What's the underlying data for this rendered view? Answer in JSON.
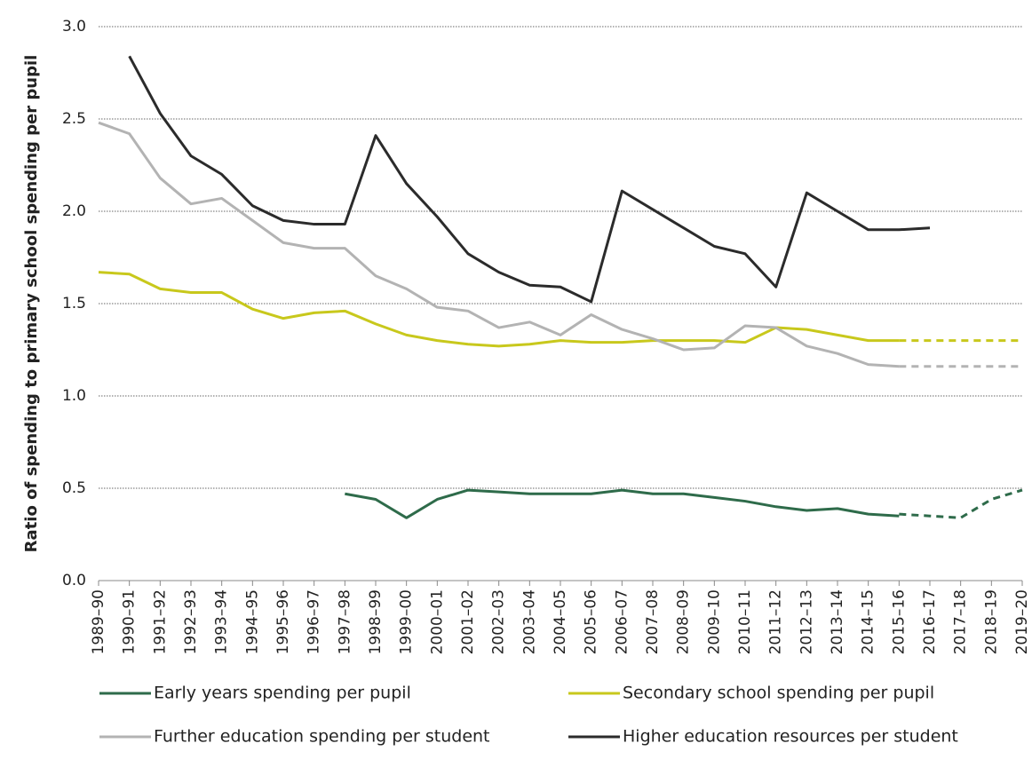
{
  "chart_data": {
    "type": "line",
    "y_label": "Ratio of spending to primary school spending per pupil",
    "categories": [
      "1989–90",
      "1990–91",
      "1991–92",
      "1992–93",
      "1993–94",
      "1994–95",
      "1995–96",
      "1996–97",
      "1997–98",
      "1998–99",
      "1999–00",
      "2000–01",
      "2001–02",
      "2002–03",
      "2003–04",
      "2004–05",
      "2005–06",
      "2006–07",
      "2007–08",
      "2008–09",
      "2009–10",
      "2010–11",
      "2011–12",
      "2012–13",
      "2013–14",
      "2014–15",
      "2015–16",
      "2016–17",
      "2017–18",
      "2018–19",
      "2019–20"
    ],
    "series": [
      {
        "name": "Early years spending per pupil",
        "color": "#2e6b4a",
        "values": [
          null,
          null,
          null,
          null,
          null,
          null,
          null,
          null,
          0.47,
          0.44,
          0.34,
          0.44,
          0.49,
          0.48,
          0.47,
          0.47,
          0.47,
          0.49,
          0.47,
          0.47,
          0.45,
          0.43,
          0.4,
          0.38,
          0.39,
          0.36,
          0.35,
          null,
          null,
          null,
          null
        ]
      },
      {
        "name": "Secondary school spending per pupil",
        "color": "#c8c81c",
        "values": [
          1.67,
          1.66,
          1.58,
          1.56,
          1.56,
          1.47,
          1.42,
          1.45,
          1.46,
          1.39,
          1.33,
          1.3,
          1.28,
          1.27,
          1.28,
          1.3,
          1.29,
          1.29,
          1.3,
          1.3,
          1.3,
          1.29,
          1.37,
          1.36,
          1.33,
          1.3,
          1.3,
          null,
          null,
          null,
          null
        ]
      },
      {
        "name": "Further education spending per student",
        "color": "#b3b3b3",
        "values": [
          2.48,
          2.42,
          2.18,
          2.04,
          2.07,
          1.95,
          1.83,
          1.8,
          1.8,
          1.65,
          1.58,
          1.48,
          1.46,
          1.37,
          1.4,
          1.33,
          1.44,
          1.36,
          1.31,
          1.25,
          1.26,
          1.38,
          1.37,
          1.27,
          1.23,
          1.17,
          1.16,
          null,
          null,
          null,
          null
        ]
      },
      {
        "name": "Higher education resources per student",
        "color": "#2b2b2b",
        "values": [
          null,
          2.84,
          2.53,
          2.3,
          2.2,
          2.03,
          1.95,
          1.93,
          1.93,
          2.41,
          2.15,
          1.97,
          1.77,
          1.67,
          1.6,
          1.59,
          1.51,
          2.11,
          2.01,
          1.91,
          1.81,
          1.77,
          1.59,
          2.1,
          2.0,
          1.9,
          1.9,
          1.91,
          null,
          null,
          null
        ]
      },
      {
        "color": "#2e6b4a",
        "dashed": true,
        "values": [
          null,
          null,
          null,
          null,
          null,
          null,
          null,
          null,
          null,
          null,
          null,
          null,
          null,
          null,
          null,
          null,
          null,
          null,
          null,
          null,
          null,
          null,
          null,
          null,
          null,
          null,
          0.36,
          0.35,
          0.34,
          0.44,
          0.49
        ]
      },
      {
        "color": "#c8c81c",
        "dashed": true,
        "values": [
          null,
          null,
          null,
          null,
          null,
          null,
          null,
          null,
          null,
          null,
          null,
          null,
          null,
          null,
          null,
          null,
          null,
          null,
          null,
          null,
          null,
          null,
          null,
          null,
          null,
          null,
          1.3,
          1.3,
          1.3,
          1.3,
          1.3
        ]
      },
      {
        "color": "#b3b3b3",
        "dashed": true,
        "values": [
          null,
          null,
          null,
          null,
          null,
          null,
          null,
          null,
          null,
          null,
          null,
          null,
          null,
          null,
          null,
          null,
          null,
          null,
          null,
          null,
          null,
          null,
          null,
          null,
          null,
          null,
          1.16,
          1.16,
          1.16,
          1.16,
          1.16
        ]
      }
    ],
    "ylim": [
      0,
      3
    ],
    "yticks": [
      {
        "value": 0,
        "label": "0.0"
      },
      0.5,
      {
        "value": 1,
        "label": "1.0"
      },
      1.5,
      {
        "value": 2,
        "label": "2.0"
      },
      2.5,
      {
        "value": 3,
        "label": "3.0"
      }
    ],
    "grid": true
  }
}
